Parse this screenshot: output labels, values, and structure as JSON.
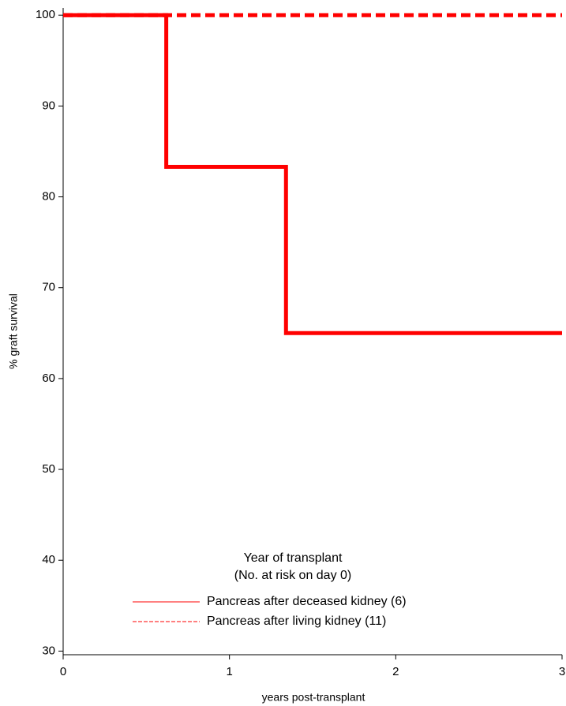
{
  "chart_data": {
    "type": "line",
    "x_label": "years post-transplant",
    "y_label": "% graft survival",
    "legend_title": [
      "Year of transplant",
      "(No. at risk on day 0)"
    ],
    "xlim": [
      0,
      3
    ],
    "xticks": [
      0,
      1,
      2,
      3
    ],
    "ylim": [
      29.6,
      100.8
    ],
    "yticks": [
      30,
      40,
      50,
      60,
      70,
      80,
      90,
      100
    ],
    "series": [
      {
        "name": "Pancreas after deceased kidney (6)",
        "color": "#ff0000",
        "dash": "solid",
        "x": [
          0,
          0.62,
          0.62,
          1.34,
          1.34,
          3
        ],
        "values": [
          100,
          100,
          83.3,
          83.3,
          65,
          65
        ]
      },
      {
        "name": "Pancreas after living kidney (11)",
        "color": "#ff0000",
        "dash": "dashed",
        "x": [
          0,
          3
        ],
        "values": [
          100,
          100
        ]
      }
    ]
  }
}
